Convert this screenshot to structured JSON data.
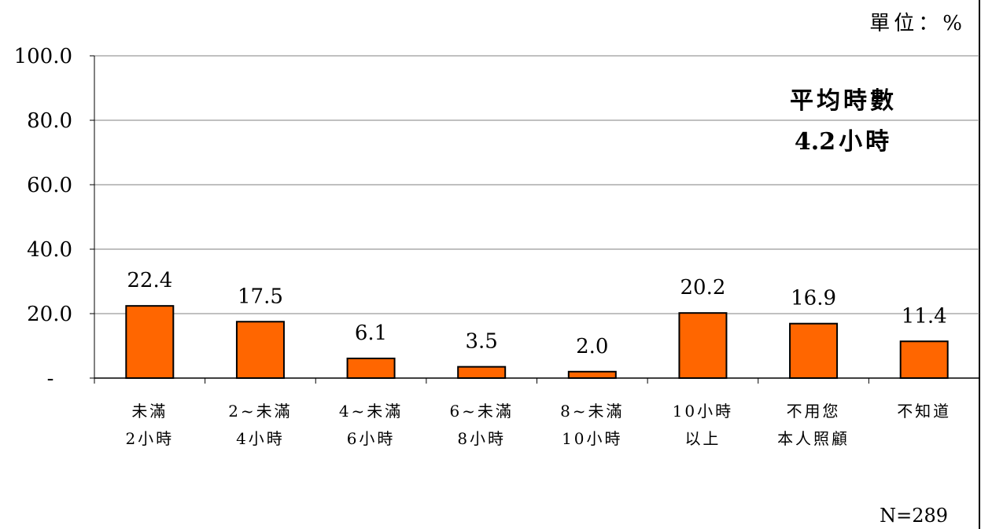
{
  "chart_data": {
    "type": "bar",
    "unit_label": "單位：%",
    "categories": [
      [
        "未滿",
        "2小時"
      ],
      [
        "2~未滿",
        "4小時"
      ],
      [
        "4~未滿",
        "6小時"
      ],
      [
        "6~未滿",
        "8小時"
      ],
      [
        "8~未滿",
        "10小時"
      ],
      [
        "10小時",
        "以上"
      ],
      [
        "不用您",
        "本人照顧"
      ],
      [
        "不知道"
      ]
    ],
    "values": [
      22.4,
      17.5,
      6.1,
      3.5,
      2.0,
      20.2,
      16.9,
      11.4
    ],
    "value_labels": [
      "22.4",
      "17.5",
      "6.1",
      "3.5",
      "2.0",
      "20.2",
      "16.9",
      "11.4"
    ],
    "ylim": [
      0,
      100
    ],
    "y_ticks": [
      0,
      20,
      40,
      60,
      80,
      100
    ],
    "y_tick_labels": [
      "-",
      "20.0",
      "40.0",
      "60.0",
      "80.0",
      "100.0"
    ],
    "grid": true,
    "annotation": {
      "line1": "平均時數",
      "line2_number": "4.2",
      "line2_unit": "小時"
    },
    "sample_size": "N=289",
    "colors": {
      "bar_fill": "#FF6600",
      "bar_stroke": "#000000",
      "grid": "#808080",
      "axis": "#000000"
    }
  }
}
